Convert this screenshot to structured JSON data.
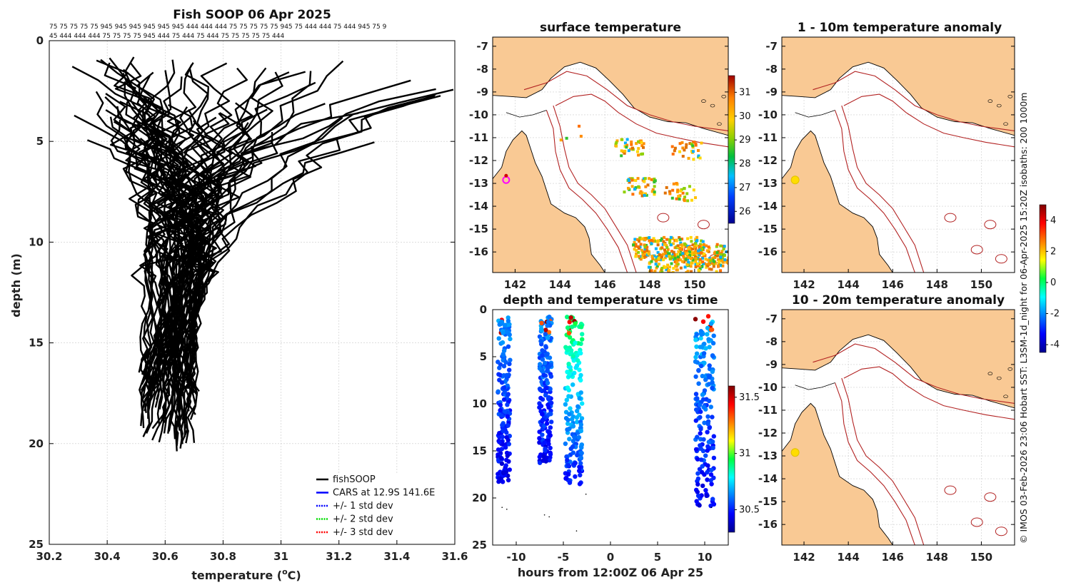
{
  "colors": {
    "land": "#f9c994",
    "coast": "#000000",
    "isobath": "#b22222",
    "profile": "#000000",
    "cars": "#0000ff"
  },
  "chart_data": [
    {
      "type": "line",
      "title": "Fish SOOP 06 Apr 2025",
      "xlabel_main": "temperature (",
      "xlabel_sup": "o",
      "xlabel_end": "C)",
      "ylabel": "depth (m)",
      "xlim": [
        30.2,
        31.6
      ],
      "ylim": [
        0,
        25
      ],
      "xticks": [
        "30.2",
        "30.4",
        "30.6",
        "30.8",
        "31",
        "31.2",
        "31.4",
        "31.6"
      ],
      "yticks": [
        "0",
        "5",
        "10",
        "15",
        "20",
        "25"
      ],
      "id_row_1": "75 75 75 75 75 945 945 945 945 945 945 444 444 444 75 75 75 75 75 945 75 444 444 75 444 945 75 9",
      "id_row_2": "45 444 444 444 75 75 75 75 945 444 75 444 75 444 75 75 75 75 75 444",
      "legend": [
        {
          "label": "fishSOOP",
          "style": "solid",
          "color": "#000000"
        },
        {
          "label": "CARS at 12.9S 141.6E",
          "style": "solid",
          "color": "#0000ff"
        },
        {
          "label": "+/- 1 std dev",
          "style": "dotted",
          "color": "#0000ff"
        },
        {
          "label": "+/- 2 std dev",
          "style": "dotted",
          "color": "#00dd00"
        },
        {
          "label": "+/- 3 std dev",
          "style": "dotted",
          "color": "#ff0000"
        }
      ],
      "series": [
        {
          "name": "fishSOOP",
          "n_profiles": 72,
          "surface_temp_range": [
            30.23,
            31.56
          ],
          "surface_depth_range": [
            0.7,
            5.3
          ],
          "bottom_temp_range": [
            30.51,
            30.71
          ],
          "bottom_depth_range": [
            16.3,
            20.4
          ]
        }
      ]
    },
    {
      "type": "map",
      "title": "surface temperature",
      "lon_range": [
        141,
        151.5
      ],
      "lat_range": [
        -16.9,
        -6.6
      ],
      "xticks": [
        "142",
        "144",
        "146",
        "148",
        "150"
      ],
      "yticks": [
        "-7",
        "-8",
        "-9",
        "-10",
        "-11",
        "-12",
        "-13",
        "-14",
        "-15",
        "-16"
      ],
      "colorbar": {
        "ticks": [
          "26",
          "27",
          "28",
          "29",
          "30",
          "31"
        ],
        "range": [
          25.5,
          31.7
        ]
      },
      "vessel_marker": {
        "lon": 141.6,
        "lat": -12.85,
        "color": "#ff00ff"
      }
    },
    {
      "type": "map",
      "title": "1 - 10m temperature anomaly",
      "lon_range": [
        141,
        151.5
      ],
      "lat_range": [
        -16.9,
        -6.6
      ],
      "xticks": [
        "142",
        "144",
        "146",
        "148",
        "150"
      ],
      "yticks": [
        "-7",
        "-8",
        "-9",
        "-10",
        "-11",
        "-12",
        "-13",
        "-14",
        "-15",
        "-16"
      ],
      "anomaly_marker": {
        "lon": 141.6,
        "lat": -12.85,
        "color": "#ffdd00"
      }
    },
    {
      "type": "map",
      "title": "10 - 20m temperature anomaly",
      "lon_range": [
        141,
        151.5
      ],
      "lat_range": [
        -16.9,
        -6.6
      ],
      "xticks": [
        "142",
        "144",
        "146",
        "148",
        "150"
      ],
      "yticks": [
        "-7",
        "-8",
        "-9",
        "-10",
        "-11",
        "-12",
        "-13",
        "-14",
        "-15",
        "-16"
      ],
      "anomaly_marker": {
        "lon": 141.6,
        "lat": -12.85,
        "color": "#ffdd00"
      },
      "colorbar": {
        "ticks": [
          "4",
          "2",
          "0",
          "-2",
          "-4"
        ],
        "range": [
          -4.5,
          5
        ]
      }
    },
    {
      "type": "scatter",
      "title": "depth and temperature vs time",
      "xlabel": "hours from 12:00Z 06 Apr 25",
      "xlim": [
        -12.5,
        12.5
      ],
      "ylim": [
        0,
        25
      ],
      "xticks": [
        "-10",
        "-5",
        "0",
        "5",
        "10"
      ],
      "yticks": [
        "0",
        "5",
        "10",
        "15",
        "20",
        "25"
      ],
      "colorbar": {
        "ticks": [
          "31.5",
          "31",
          "30.5"
        ],
        "range": [
          30.3,
          31.6
        ]
      },
      "casts": [
        {
          "time": -11.3,
          "width": 1.3,
          "max_depth": 18.3
        },
        {
          "time": -6.9,
          "width": 1.3,
          "max_depth": 16.3
        },
        {
          "time": -3.9,
          "width": 1.8,
          "max_depth": 18.6
        },
        {
          "time": 10.0,
          "width": 2.0,
          "max_depth": 21.0
        }
      ]
    }
  ],
  "credit": "© IMOS 03-Feb-2026 23:06 Hobart SST: L3SM-1d_night for 06-Apr-2025 15:20Z isobaths: 200  1000m"
}
